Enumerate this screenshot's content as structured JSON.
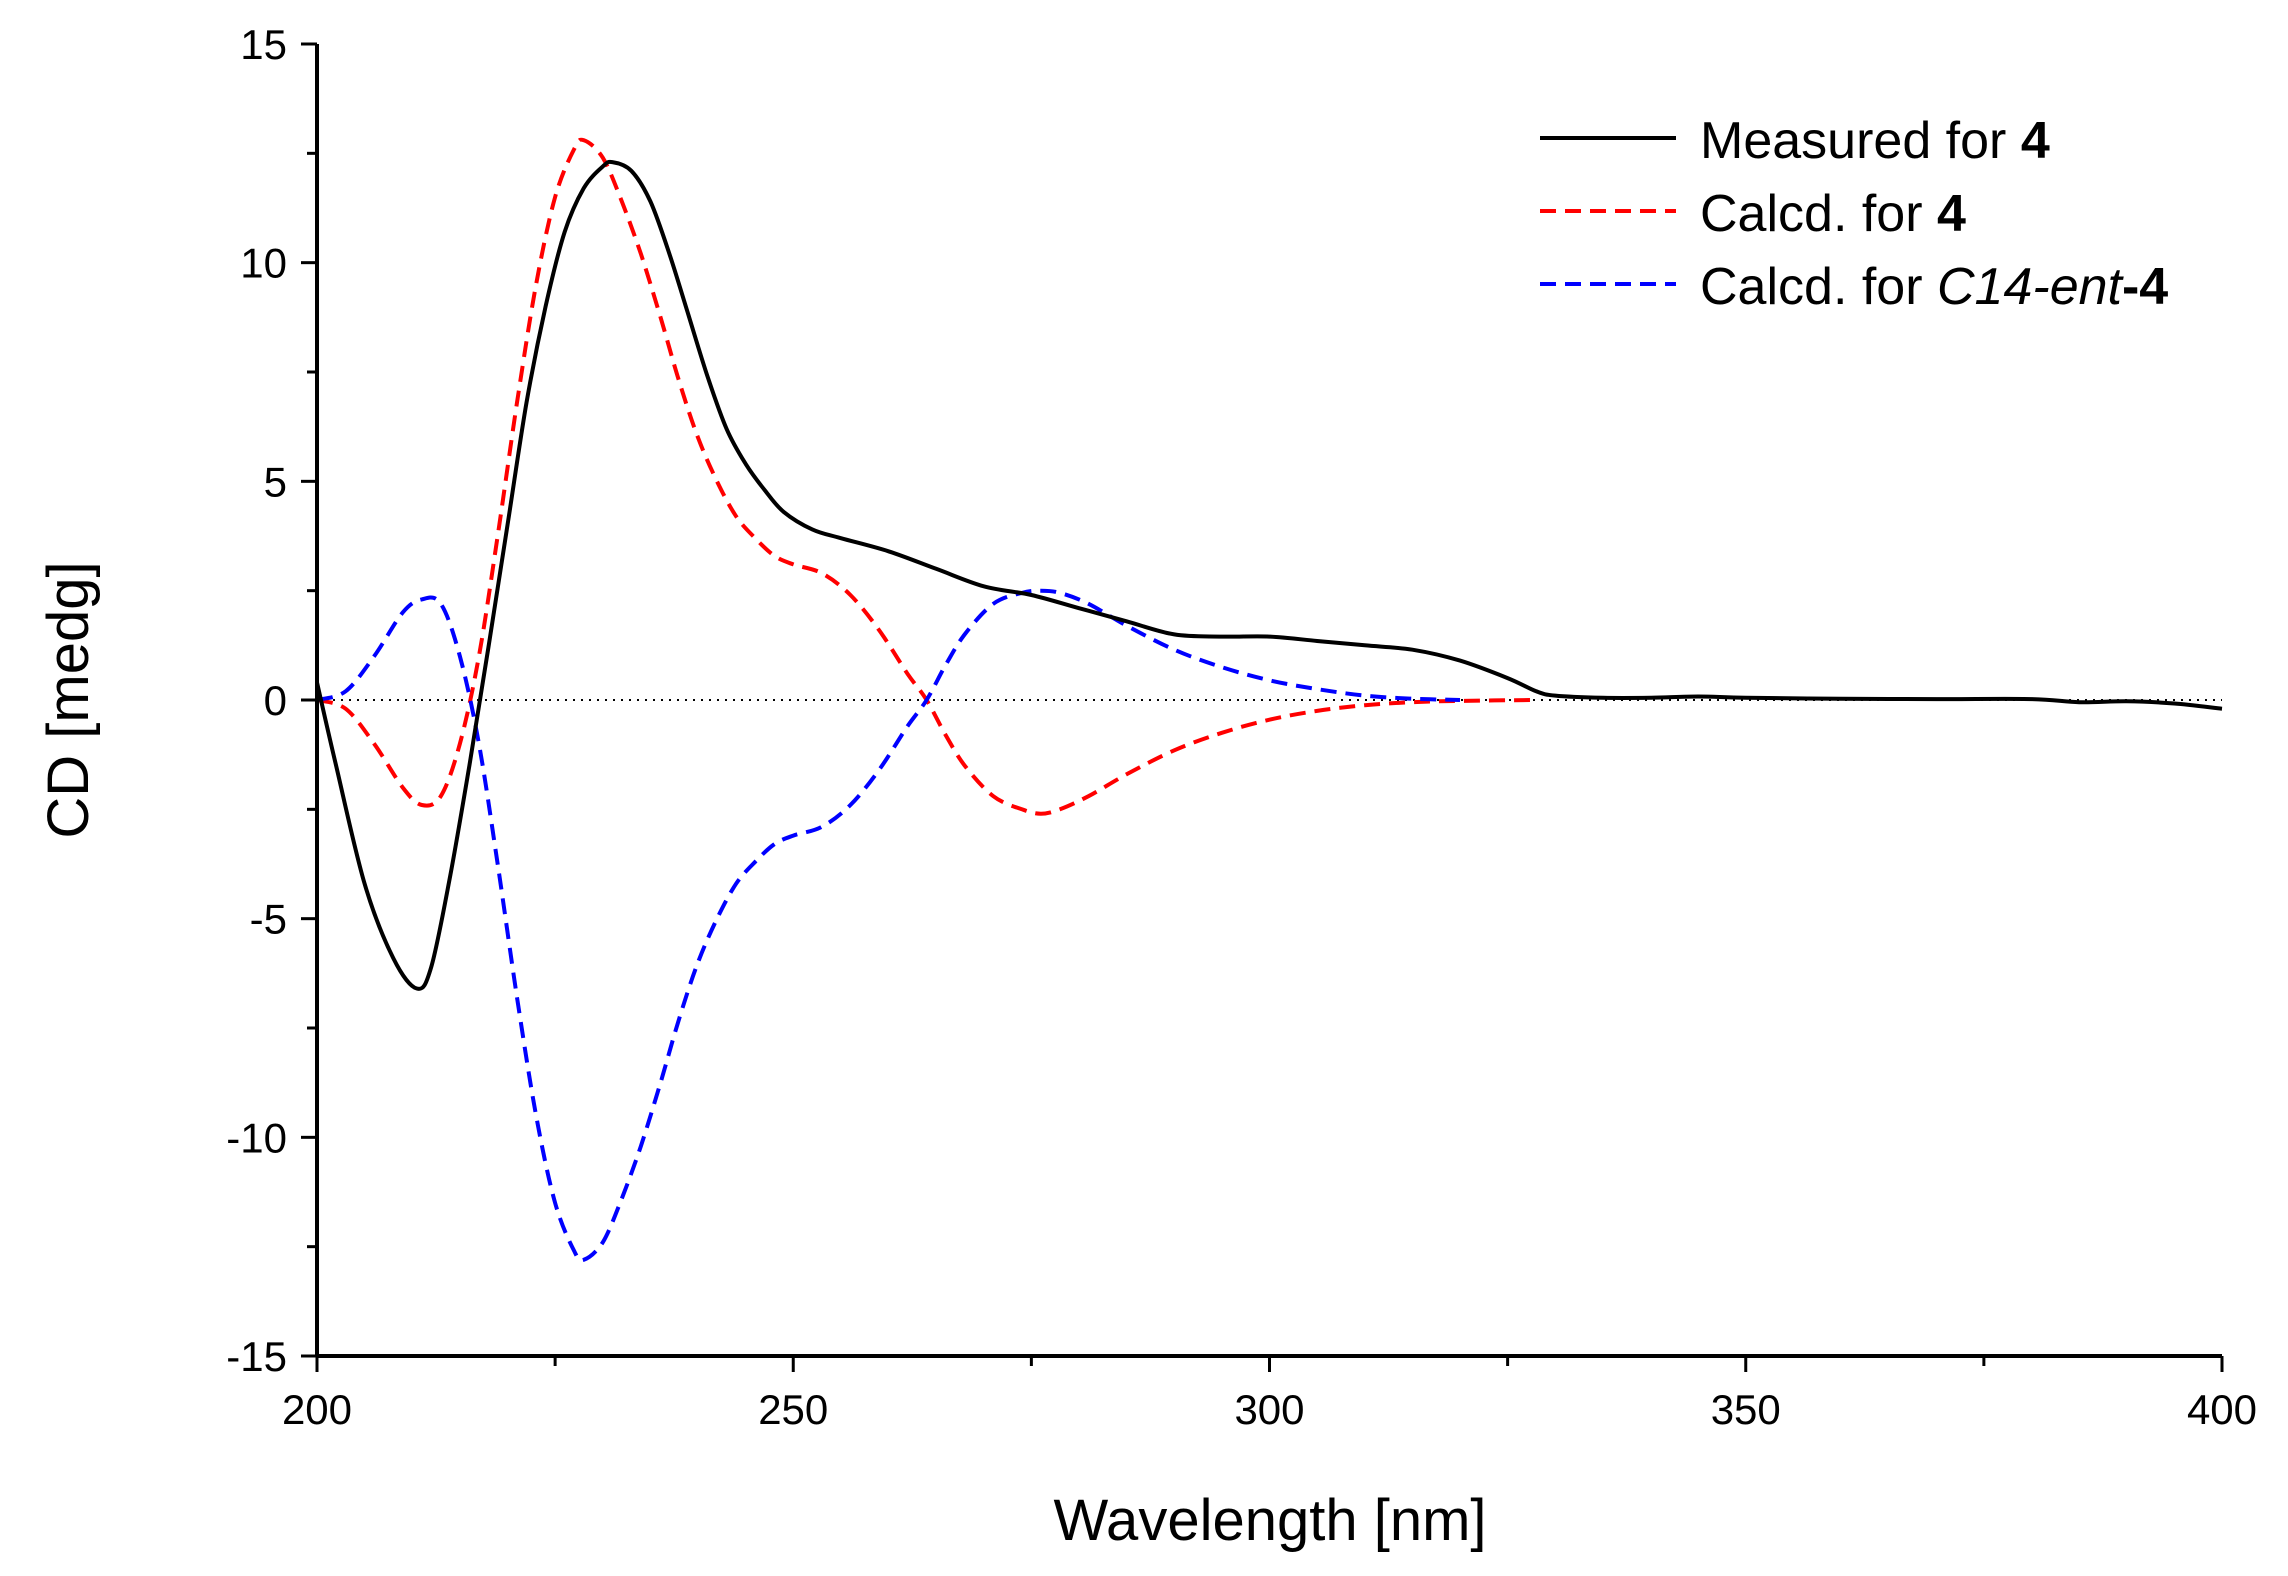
{
  "chart_data": {
    "type": "line",
    "xlabel": "Wavelength [nm]",
    "ylabel": "CD [medg]",
    "xlim": [
      200,
      400
    ],
    "ylim": [
      -15,
      15
    ],
    "x_ticks": [
      200,
      250,
      300,
      350,
      400
    ],
    "x_tick_labels": [
      "200",
      "250",
      "300",
      "350",
      "400"
    ],
    "y_ticks": [
      -15,
      -10,
      -5,
      0,
      5,
      10,
      15
    ],
    "y_tick_labels": [
      "-15",
      "-10",
      "-5",
      "0",
      "5",
      "10",
      "15"
    ],
    "grid": false,
    "zero_line": "dotted",
    "legend_position": "top-right",
    "series": [
      {
        "name": "Measured for 4",
        "legend_parts": [
          {
            "text": "Measured for ",
            "style": "normal"
          },
          {
            "text": "4",
            "style": "bold"
          }
        ],
        "color": "#000000",
        "dash": "solid",
        "points": [
          [
            200,
            0.4
          ],
          [
            202,
            -1.5
          ],
          [
            205,
            -4.2
          ],
          [
            208,
            -5.9
          ],
          [
            210.5,
            -6.6
          ],
          [
            212,
            -6.1
          ],
          [
            214,
            -4.0
          ],
          [
            216,
            -1.5
          ],
          [
            218,
            1.2
          ],
          [
            220,
            4.0
          ],
          [
            222,
            6.8
          ],
          [
            224,
            9.0
          ],
          [
            226,
            10.7
          ],
          [
            228,
            11.7
          ],
          [
            230,
            12.2
          ],
          [
            231,
            12.3
          ],
          [
            233,
            12.1
          ],
          [
            235,
            11.4
          ],
          [
            237,
            10.2
          ],
          [
            239,
            8.8
          ],
          [
            241,
            7.4
          ],
          [
            243,
            6.2
          ],
          [
            245,
            5.4
          ],
          [
            247,
            4.8
          ],
          [
            249,
            4.3
          ],
          [
            252,
            3.9
          ],
          [
            255,
            3.7
          ],
          [
            260,
            3.4
          ],
          [
            265,
            3.0
          ],
          [
            270,
            2.6
          ],
          [
            275,
            2.4
          ],
          [
            280,
            2.1
          ],
          [
            285,
            1.8
          ],
          [
            290,
            1.5
          ],
          [
            295,
            1.45
          ],
          [
            300,
            1.45
          ],
          [
            305,
            1.35
          ],
          [
            310,
            1.25
          ],
          [
            315,
            1.15
          ],
          [
            320,
            0.9
          ],
          [
            325,
            0.5
          ],
          [
            328,
            0.2
          ],
          [
            330,
            0.1
          ],
          [
            335,
            0.05
          ],
          [
            340,
            0.05
          ],
          [
            345,
            0.08
          ],
          [
            350,
            0.05
          ],
          [
            360,
            0.03
          ],
          [
            370,
            0.02
          ],
          [
            380,
            0.02
          ],
          [
            385,
            -0.05
          ],
          [
            390,
            -0.03
          ],
          [
            395,
            -0.08
          ],
          [
            400,
            -0.2
          ]
        ]
      },
      {
        "name": "Calcd. for 4",
        "legend_parts": [
          {
            "text": "Calcd. for ",
            "style": "normal"
          },
          {
            "text": "4",
            "style": "bold"
          }
        ],
        "color": "#ff0000",
        "dash": "dashed",
        "points": [
          [
            200,
            0.0
          ],
          [
            203,
            -0.2
          ],
          [
            206,
            -1.0
          ],
          [
            209,
            -2.0
          ],
          [
            211,
            -2.4
          ],
          [
            213,
            -2.2
          ],
          [
            215,
            -1.0
          ],
          [
            217,
            1.0
          ],
          [
            219,
            3.8
          ],
          [
            221,
            6.8
          ],
          [
            223,
            9.5
          ],
          [
            225,
            11.5
          ],
          [
            227,
            12.6
          ],
          [
            228,
            12.8
          ],
          [
            230,
            12.4
          ],
          [
            232,
            11.4
          ],
          [
            234,
            10.2
          ],
          [
            236,
            8.8
          ],
          [
            238,
            7.3
          ],
          [
            240,
            6.0
          ],
          [
            242,
            5.0
          ],
          [
            244,
            4.2
          ],
          [
            246,
            3.7
          ],
          [
            248,
            3.3
          ],
          [
            250,
            3.1
          ],
          [
            253,
            2.9
          ],
          [
            256,
            2.4
          ],
          [
            259,
            1.6
          ],
          [
            262,
            0.6
          ],
          [
            264,
            0.0
          ],
          [
            266,
            -0.8
          ],
          [
            268,
            -1.5
          ],
          [
            271,
            -2.2
          ],
          [
            274,
            -2.5
          ],
          [
            276,
            -2.6
          ],
          [
            278,
            -2.5
          ],
          [
            281,
            -2.2
          ],
          [
            285,
            -1.7
          ],
          [
            290,
            -1.15
          ],
          [
            295,
            -0.75
          ],
          [
            300,
            -0.45
          ],
          [
            305,
            -0.25
          ],
          [
            310,
            -0.12
          ],
          [
            315,
            -0.05
          ],
          [
            320,
            -0.02
          ],
          [
            328,
            0.0
          ]
        ]
      },
      {
        "name": "Calcd. for C14-ent-4",
        "legend_parts": [
          {
            "text": "Calcd. for ",
            "style": "normal"
          },
          {
            "text": "C14-ent",
            "style": "italic"
          },
          {
            "text": "-4",
            "style": "bold"
          }
        ],
        "color": "#0000ff",
        "dash": "dashed",
        "points": [
          [
            200,
            0.0
          ],
          [
            203,
            0.2
          ],
          [
            206,
            1.0
          ],
          [
            209,
            2.0
          ],
          [
            211,
            2.3
          ],
          [
            213,
            2.2
          ],
          [
            215,
            1.0
          ],
          [
            217,
            -1.0
          ],
          [
            219,
            -3.8
          ],
          [
            221,
            -6.8
          ],
          [
            223,
            -9.5
          ],
          [
            225,
            -11.5
          ],
          [
            227,
            -12.6
          ],
          [
            228,
            -12.8
          ],
          [
            230,
            -12.4
          ],
          [
            232,
            -11.4
          ],
          [
            234,
            -10.2
          ],
          [
            236,
            -8.8
          ],
          [
            238,
            -7.3
          ],
          [
            240,
            -6.0
          ],
          [
            242,
            -5.0
          ],
          [
            244,
            -4.2
          ],
          [
            246,
            -3.7
          ],
          [
            248,
            -3.3
          ],
          [
            250,
            -3.1
          ],
          [
            253,
            -2.9
          ],
          [
            256,
            -2.4
          ],
          [
            259,
            -1.6
          ],
          [
            262,
            -0.6
          ],
          [
            264,
            0.0
          ],
          [
            266,
            0.8
          ],
          [
            268,
            1.5
          ],
          [
            271,
            2.2
          ],
          [
            274,
            2.45
          ],
          [
            276,
            2.5
          ],
          [
            278,
            2.45
          ],
          [
            281,
            2.2
          ],
          [
            285,
            1.7
          ],
          [
            290,
            1.15
          ],
          [
            295,
            0.75
          ],
          [
            300,
            0.45
          ],
          [
            305,
            0.25
          ],
          [
            310,
            0.1
          ],
          [
            315,
            0.03
          ],
          [
            320,
            0.0
          ]
        ]
      }
    ]
  }
}
